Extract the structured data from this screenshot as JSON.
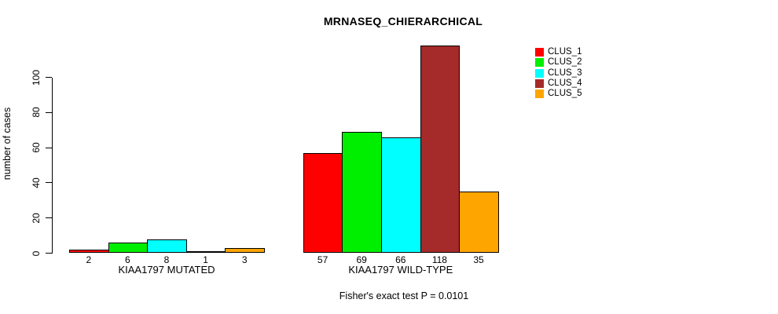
{
  "chart_data": {
    "type": "bar",
    "title": "MRNASEQ_CHIERARCHICAL",
    "ylabel": "number of cases",
    "xlabel": "",
    "ylim": [
      0,
      100
    ],
    "yticks": [
      0,
      20,
      40,
      60,
      80,
      100
    ],
    "grid": false,
    "legend_position": "right-outside",
    "categories": [
      "KIAA1797 MUTATED",
      "KIAA1797 WILD-TYPE"
    ],
    "series": [
      {
        "name": "CLUS_1",
        "color": "#ff0000",
        "values": [
          2,
          57
        ]
      },
      {
        "name": "CLUS_2",
        "color": "#00ee00",
        "values": [
          6,
          69
        ]
      },
      {
        "name": "CLUS_3",
        "color": "#00ffff",
        "values": [
          8,
          66
        ]
      },
      {
        "name": "CLUS_4",
        "color": "#a52a2a",
        "values": [
          1,
          118
        ]
      },
      {
        "name": "CLUS_5",
        "color": "#ffa500",
        "values": [
          3,
          35
        ]
      }
    ],
    "bar_value_labels_shown": true,
    "annotation": "Fisher's exact test P = 0.0101"
  }
}
